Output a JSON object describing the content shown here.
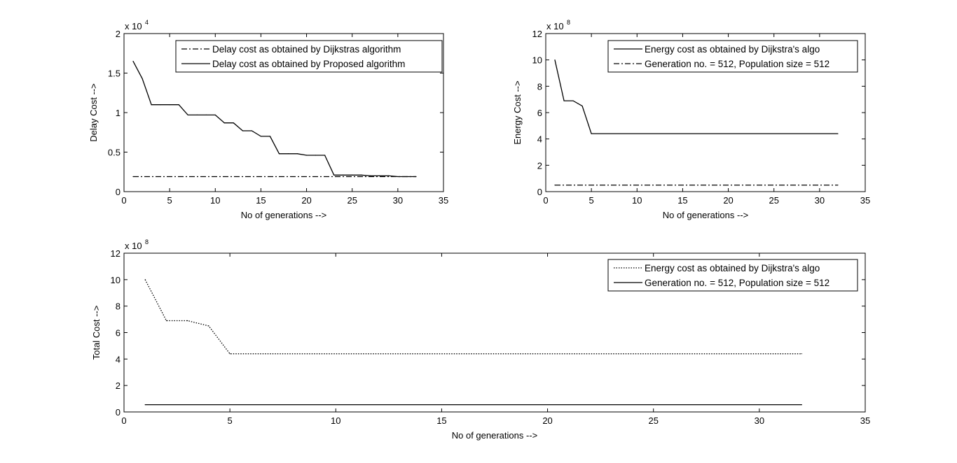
{
  "chart_data": [
    {
      "type": "line",
      "ylabel": "Delay Cost -->",
      "xlabel": "No of generations -->",
      "xlim": [
        0,
        35
      ],
      "ylim": [
        0,
        20000
      ],
      "xticks": [
        0,
        5,
        10,
        15,
        20,
        25,
        30,
        35
      ],
      "yticks": [
        0,
        0.5,
        1,
        1.5,
        2
      ],
      "y_exponent_label": "x 10",
      "y_exponent_power": "4",
      "legend_position": "top-right",
      "series": [
        {
          "name": "Delay cost as obtained by Dijkstras algorithm",
          "style": "dashdot",
          "x": [
            1,
            32
          ],
          "y": [
            1900,
            1900
          ]
        },
        {
          "name": "Delay cost as obtained by Proposed algorithm",
          "style": "solid",
          "x": [
            1,
            2,
            3,
            4,
            5,
            6,
            7,
            8,
            9,
            10,
            11,
            12,
            13,
            14,
            15,
            16,
            17,
            18,
            19,
            20,
            21,
            22,
            23,
            24,
            25,
            26,
            27,
            28,
            29,
            30,
            31,
            32
          ],
          "y": [
            16500,
            14300,
            11000,
            11000,
            11000,
            11000,
            9700,
            9700,
            9700,
            9700,
            8700,
            8700,
            7700,
            7700,
            7000,
            7000,
            4800,
            4800,
            4800,
            4600,
            4600,
            4600,
            2100,
            2100,
            2100,
            2100,
            2000,
            2000,
            2000,
            1900,
            1900,
            1900
          ]
        }
      ]
    },
    {
      "type": "line",
      "ylabel": "Energy Cost -->",
      "xlabel": "No of generations -->",
      "xlim": [
        0,
        35
      ],
      "ylim": [
        0,
        1200000000
      ],
      "xticks": [
        0,
        5,
        10,
        15,
        20,
        25,
        30,
        35
      ],
      "yticks": [
        0,
        2,
        4,
        6,
        8,
        10,
        12
      ],
      "y_exponent_label": "x 10",
      "y_exponent_power": "8",
      "legend_position": "top-right",
      "series": [
        {
          "name": "Energy cost as obtained by Dijkstra's algo",
          "style": "solid",
          "x": [
            1,
            2,
            3,
            4,
            5,
            32
          ],
          "y": [
            1000000000,
            690000000,
            690000000,
            650000000,
            440000000,
            440000000
          ]
        },
        {
          "name": "Generation no. = 512, Population size = 512",
          "style": "dashdot",
          "x": [
            1,
            32
          ],
          "y": [
            50000000,
            50000000
          ]
        }
      ]
    },
    {
      "type": "line",
      "ylabel": "Total Cost -->",
      "xlabel": "No of generations -->",
      "xlim": [
        0,
        35
      ],
      "ylim": [
        0,
        1200000000
      ],
      "xticks": [
        0,
        5,
        10,
        15,
        20,
        25,
        30,
        35
      ],
      "yticks": [
        0,
        2,
        4,
        6,
        8,
        10,
        12
      ],
      "y_exponent_label": "x 10",
      "y_exponent_power": "8",
      "legend_position": "top-right",
      "series": [
        {
          "name": "Energy cost as obtained by Dijkstra's algo",
          "style": "dotted",
          "x": [
            1,
            2,
            3,
            4,
            5,
            32
          ],
          "y": [
            1000000000,
            690000000,
            690000000,
            650000000,
            440000000,
            440000000
          ]
        },
        {
          "name": "Generation no. = 512, Population size = 512",
          "style": "solid",
          "x": [
            1,
            32
          ],
          "y": [
            55000000,
            55000000
          ]
        }
      ]
    }
  ]
}
